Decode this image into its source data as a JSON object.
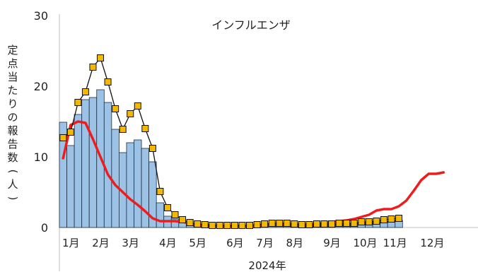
{
  "chart_data": {
    "type": "bar",
    "title": "インフルエンザ",
    "ylabel": "定点当たりの報告数(人)",
    "xlabel": "2024年",
    "ylim": [
      0,
      30
    ],
    "yticks": [
      0,
      10,
      20,
      30
    ],
    "grid": false,
    "month_labels": [
      "1月",
      "2月",
      "3月",
      "4月",
      "5月",
      "6月",
      "7月",
      "8月",
      "9月",
      "10月",
      "11月",
      "12月"
    ],
    "month_start_week": [
      1,
      5,
      9,
      14,
      18,
      23,
      27,
      31,
      36,
      40,
      44,
      49
    ],
    "weeks": [
      1,
      2,
      3,
      4,
      5,
      6,
      7,
      8,
      9,
      10,
      11,
      12,
      13,
      14,
      15,
      16,
      17,
      18,
      19,
      20,
      21,
      22,
      23,
      24,
      25,
      26,
      27,
      28,
      29,
      30,
      31,
      32,
      33,
      34,
      35,
      36,
      37,
      38,
      39,
      40,
      41,
      42,
      43,
      44,
      45,
      46,
      47,
      48,
      49,
      50,
      51,
      52
    ],
    "series": [
      {
        "kind": "bar",
        "color": "#9cc3e6",
        "values": [
          14.9,
          11.6,
          16.0,
          18.1,
          18.4,
          19.5,
          17.7,
          13.9,
          10.6,
          12.0,
          12.4,
          11.2,
          9.3,
          3.5,
          1.6,
          1.2,
          0.7,
          0.5,
          0.4,
          0.4,
          0.3,
          0.3,
          0.3,
          0.3,
          0.3,
          0.3,
          0.4,
          0.4,
          0.4,
          0.4,
          0.4,
          0.4,
          0.4,
          0.4,
          0.5,
          0.5,
          0.5,
          0.6,
          0.6,
          0.6,
          0.7,
          0.7,
          0.8,
          0.8,
          0.9,
          1.0
        ]
      },
      {
        "kind": "line-marker",
        "color": "#f5b800",
        "values": [
          12.7,
          13.5,
          17.7,
          19.2,
          22.7,
          24.0,
          20.6,
          16.8,
          13.9,
          16.1,
          17.2,
          14.0,
          11.2,
          5.1,
          2.8,
          1.8,
          1.1,
          0.7,
          0.5,
          0.4,
          0.3,
          0.3,
          0.3,
          0.3,
          0.3,
          0.3,
          0.4,
          0.5,
          0.6,
          0.6,
          0.6,
          0.5,
          0.4,
          0.4,
          0.5,
          0.5,
          0.5,
          0.6,
          0.6,
          0.6,
          0.8,
          0.8,
          0.9,
          1.1,
          1.2,
          1.3
        ]
      },
      {
        "kind": "line",
        "color": "#ee1c1c",
        "values": [
          9.8,
          14.5,
          15.0,
          14.8,
          12.5,
          10.0,
          7.5,
          6.0,
          5.0,
          4.0,
          3.2,
          2.3,
          1.3,
          0.9,
          0.9,
          0.9,
          0.8,
          0.6,
          0.4,
          0.3,
          0.3,
          0.2,
          0.2,
          0.2,
          0.2,
          0.2,
          0.3,
          0.3,
          0.4,
          0.4,
          0.4,
          0.4,
          0.4,
          0.4,
          0.5,
          0.6,
          0.8,
          0.9,
          1.0,
          1.2,
          1.5,
          1.8,
          2.4,
          2.6,
          2.6,
          3.0,
          3.8,
          5.2,
          6.7,
          7.6,
          7.6,
          7.8
        ]
      }
    ]
  }
}
